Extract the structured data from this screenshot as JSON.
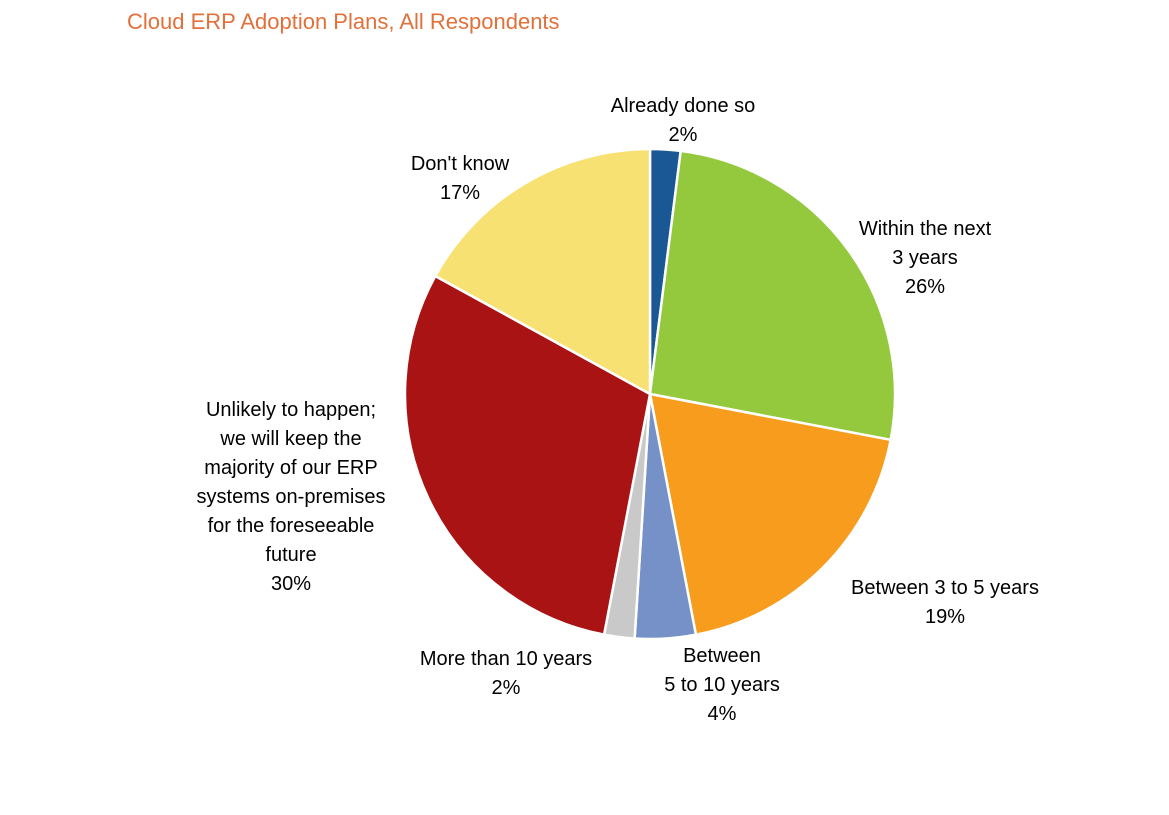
{
  "chart_data": {
    "type": "pie",
    "title": "Cloud ERP Adoption Plans, All Respondents",
    "title_color": "#E2703A",
    "legend_position": "none",
    "labels_position": "outside",
    "direction": "clockwise",
    "start_angle_deg": 0,
    "slices": [
      {
        "id": "already-done",
        "label": "Already done so",
        "value": 2,
        "pct_label": "2%",
        "color": "#1A5795"
      },
      {
        "id": "within-3-years",
        "label": "Within the next\n3 years",
        "value": 26,
        "pct_label": "26%",
        "color": "#94C83D"
      },
      {
        "id": "between-3-5",
        "label": "Between 3 to 5 years",
        "value": 19,
        "pct_label": "19%",
        "color": "#F79C1C"
      },
      {
        "id": "between-5-10",
        "label": "Between\n5 to 10 years",
        "value": 4,
        "pct_label": "4%",
        "color": "#7591C8"
      },
      {
        "id": "more-than-10",
        "label": "More than 10 years",
        "value": 2,
        "pct_label": "2%",
        "color": "#C9C9C9"
      },
      {
        "id": "unlikely",
        "label": "Unlikely to happen;\nwe will keep the\nmajority of our ERP\nsystems on-premises\nfor the foreseeable\nfuture",
        "value": 30,
        "pct_label": "30%",
        "color": "#A91313"
      },
      {
        "id": "dont-know",
        "label": "Don't know",
        "value": 17,
        "pct_label": "17%",
        "color": "#F7E173"
      }
    ]
  }
}
